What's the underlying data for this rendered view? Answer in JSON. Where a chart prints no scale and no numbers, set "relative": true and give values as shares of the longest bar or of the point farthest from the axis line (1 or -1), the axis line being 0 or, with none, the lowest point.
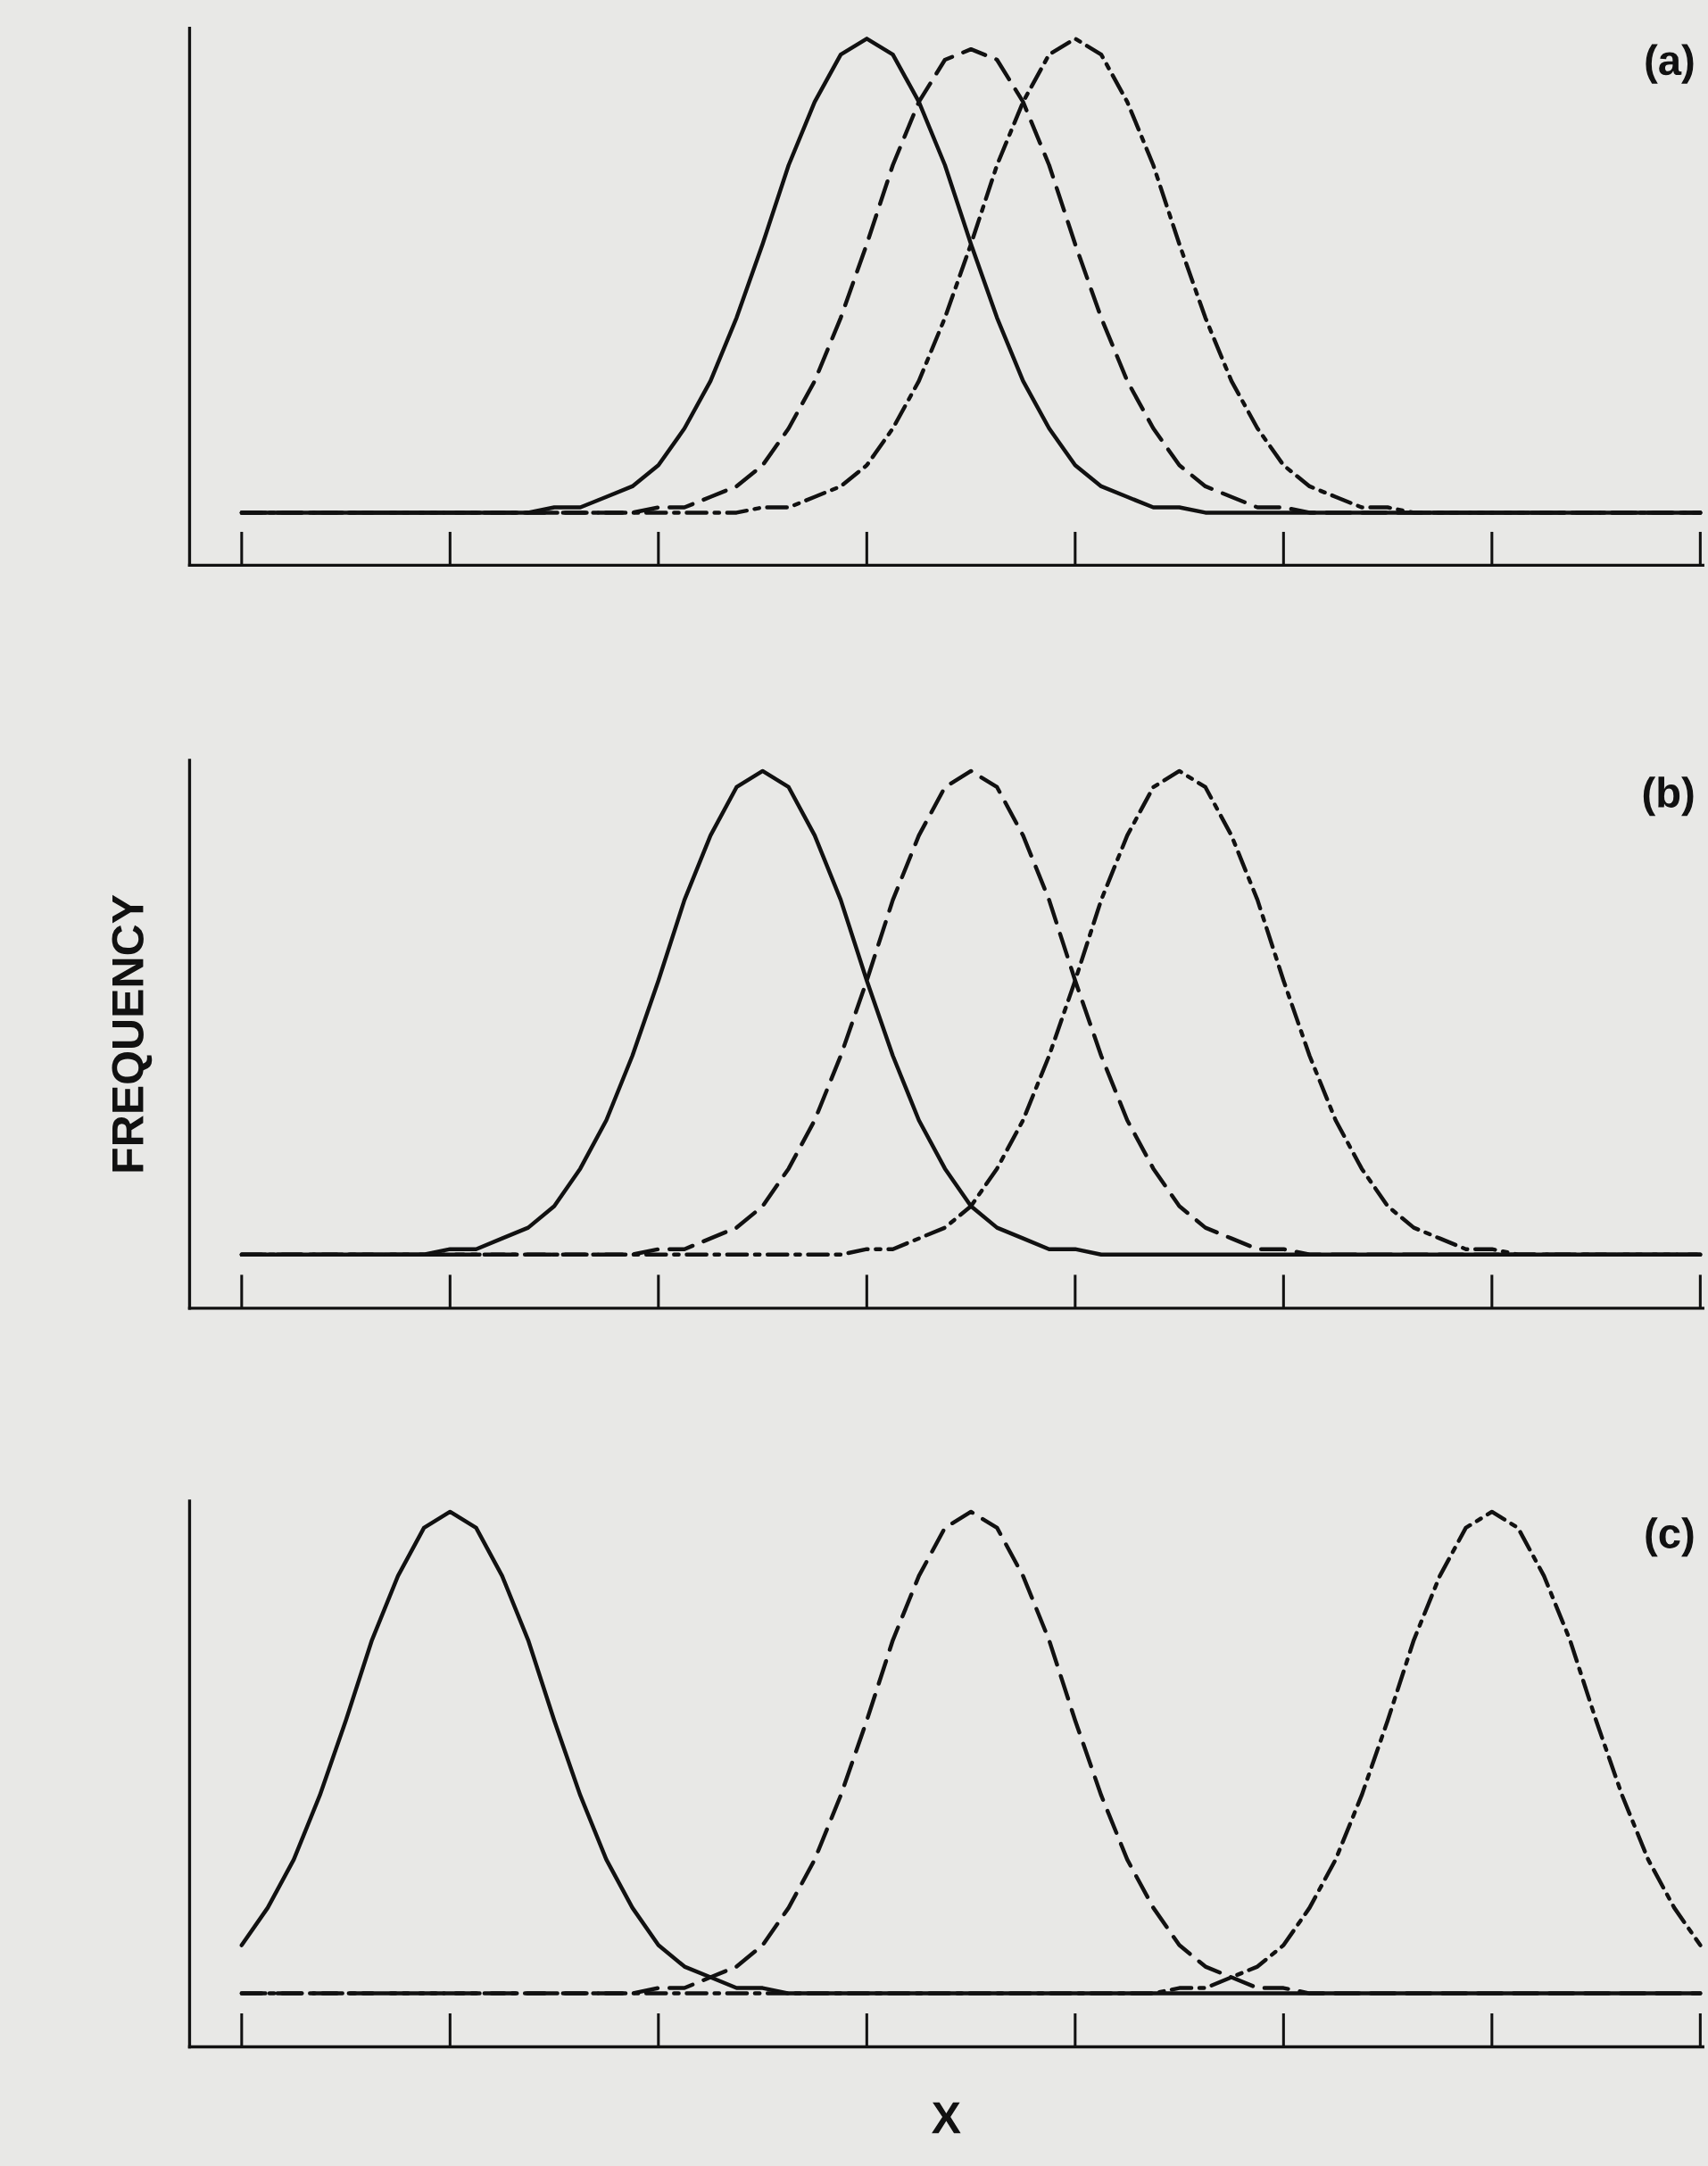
{
  "chart_data": [
    {
      "type": "line",
      "relative": true,
      "annotations": [
        "(a)"
      ],
      "categories": [
        null,
        null,
        null,
        null,
        null,
        null,
        null,
        null,
        null,
        null,
        null,
        null,
        null,
        null,
        null,
        null,
        null,
        null,
        null,
        null,
        null,
        null,
        null,
        null,
        null,
        null,
        null,
        null,
        null,
        null,
        null,
        null,
        null,
        null,
        null,
        null,
        null,
        null,
        null,
        null,
        null,
        null,
        null,
        null,
        null,
        null,
        null,
        null,
        null,
        null,
        null,
        null,
        null,
        null,
        null,
        null,
        null
      ],
      "series": [
        {
          "color": "#111111",
          "line_style": "solid",
          "values": [
            0.1,
            0.1,
            0.1,
            0.1,
            0.1,
            0.1,
            0.1,
            0.1,
            0.1,
            0.1,
            0.1,
            0.1,
            0.11,
            0.11,
            0.13,
            0.15,
            0.19,
            0.26,
            0.35,
            0.47,
            0.61,
            0.76,
            0.88,
            0.97,
            1,
            0.97,
            0.88,
            0.76,
            0.61,
            0.47,
            0.35,
            0.26,
            0.19,
            0.15,
            0.13,
            0.11,
            0.11,
            0.1,
            0.1,
            0.1,
            0.1,
            0.1,
            0.1,
            0.1,
            0.1,
            0.1,
            0.1,
            0.1,
            0.1,
            0.1,
            0.1,
            0.1,
            0.1,
            0.1,
            0.1,
            0.1,
            0.1
          ]
        },
        {
          "color": "#111111",
          "line_style": "dashed",
          "values": [
            0.1,
            0.1,
            0.1,
            0.1,
            0.1,
            0.1,
            0.1,
            0.1,
            0.1,
            0.1,
            0.1,
            0.1,
            0.1,
            0.1,
            0.1,
            0.1,
            0.11,
            0.11,
            0.13,
            0.15,
            0.19,
            0.26,
            0.35,
            0.47,
            0.61,
            0.76,
            0.88,
            0.96,
            0.98,
            0.96,
            0.88,
            0.76,
            0.61,
            0.47,
            0.35,
            0.26,
            0.19,
            0.15,
            0.13,
            0.11,
            0.11,
            0.1,
            0.1,
            0.1,
            0.1,
            0.1,
            0.1,
            0.1,
            0.1,
            0.1,
            0.1,
            0.1,
            0.1,
            0.1,
            0.1,
            0.1,
            0.1
          ]
        },
        {
          "color": "#111111",
          "line_style": "dashdot",
          "values": [
            0.1,
            0.1,
            0.1,
            0.1,
            0.1,
            0.1,
            0.1,
            0.1,
            0.1,
            0.1,
            0.1,
            0.1,
            0.1,
            0.1,
            0.1,
            0.1,
            0.1,
            0.1,
            0.1,
            0.1,
            0.11,
            0.11,
            0.13,
            0.15,
            0.19,
            0.26,
            0.35,
            0.47,
            0.61,
            0.76,
            0.88,
            0.97,
            1,
            0.97,
            0.88,
            0.76,
            0.61,
            0.47,
            0.35,
            0.26,
            0.19,
            0.15,
            0.13,
            0.11,
            0.11,
            0.1,
            0.1,
            0.1,
            0.1,
            0.1,
            0.1,
            0.1,
            0.1,
            0.1,
            0.1,
            0.1,
            0.1
          ]
        }
      ]
    },
    {
      "type": "line",
      "relative": true,
      "annotations": [
        "(b)"
      ],
      "ylabel": "FREQUENCY",
      "categories": [
        null,
        null,
        null,
        null,
        null,
        null,
        null,
        null,
        null,
        null,
        null,
        null,
        null,
        null,
        null,
        null,
        null,
        null,
        null,
        null,
        null,
        null,
        null,
        null,
        null,
        null,
        null,
        null,
        null,
        null,
        null,
        null,
        null,
        null,
        null,
        null,
        null,
        null,
        null,
        null,
        null,
        null,
        null,
        null,
        null,
        null,
        null,
        null,
        null,
        null,
        null,
        null,
        null,
        null,
        null,
        null,
        null
      ],
      "series": [
        {
          "color": "#111111",
          "line_style": "solid",
          "values": [
            0.1,
            0.1,
            0.1,
            0.1,
            0.1,
            0.1,
            0.1,
            0.1,
            0.11,
            0.11,
            0.13,
            0.15,
            0.19,
            0.26,
            0.35,
            0.47,
            0.61,
            0.76,
            0.88,
            0.97,
            1,
            0.97,
            0.88,
            0.76,
            0.61,
            0.47,
            0.35,
            0.26,
            0.19,
            0.15,
            0.13,
            0.11,
            0.11,
            0.1,
            0.1,
            0.1,
            0.1,
            0.1,
            0.1,
            0.1,
            0.1,
            0.1,
            0.1,
            0.1,
            0.1,
            0.1,
            0.1,
            0.1,
            0.1,
            0.1,
            0.1,
            0.1,
            0.1,
            0.1,
            0.1,
            0.1,
            0.1
          ]
        },
        {
          "color": "#111111",
          "line_style": "dashed",
          "values": [
            0.1,
            0.1,
            0.1,
            0.1,
            0.1,
            0.1,
            0.1,
            0.1,
            0.1,
            0.1,
            0.1,
            0.1,
            0.1,
            0.1,
            0.1,
            0.1,
            0.11,
            0.11,
            0.13,
            0.15,
            0.19,
            0.26,
            0.35,
            0.47,
            0.61,
            0.76,
            0.88,
            0.97,
            1,
            0.97,
            0.88,
            0.76,
            0.61,
            0.47,
            0.35,
            0.26,
            0.19,
            0.15,
            0.13,
            0.11,
            0.11,
            0.1,
            0.1,
            0.1,
            0.1,
            0.1,
            0.1,
            0.1,
            0.1,
            0.1,
            0.1,
            0.1,
            0.1,
            0.1,
            0.1,
            0.1,
            0.1
          ]
        },
        {
          "color": "#111111",
          "line_style": "dashdot",
          "values": [
            0.1,
            0.1,
            0.1,
            0.1,
            0.1,
            0.1,
            0.1,
            0.1,
            0.1,
            0.1,
            0.1,
            0.1,
            0.1,
            0.1,
            0.1,
            0.1,
            0.1,
            0.1,
            0.1,
            0.1,
            0.1,
            0.1,
            0.1,
            0.1,
            0.11,
            0.11,
            0.13,
            0.15,
            0.19,
            0.26,
            0.35,
            0.47,
            0.61,
            0.76,
            0.88,
            0.97,
            1,
            0.97,
            0.88,
            0.76,
            0.61,
            0.47,
            0.35,
            0.26,
            0.19,
            0.15,
            0.13,
            0.11,
            0.11,
            0.1,
            0.1,
            0.1,
            0.1,
            0.1,
            0.1,
            0.1,
            0.1
          ]
        }
      ]
    },
    {
      "type": "line",
      "relative": true,
      "annotations": [
        "(c)"
      ],
      "xlabel": "X",
      "categories": [
        null,
        null,
        null,
        null,
        null,
        null,
        null,
        null,
        null,
        null,
        null,
        null,
        null,
        null,
        null,
        null,
        null,
        null,
        null,
        null,
        null,
        null,
        null,
        null,
        null,
        null,
        null,
        null,
        null,
        null,
        null,
        null,
        null,
        null,
        null,
        null,
        null,
        null,
        null,
        null,
        null,
        null,
        null,
        null,
        null,
        null,
        null,
        null,
        null,
        null,
        null,
        null,
        null,
        null,
        null,
        null,
        null
      ],
      "series": [
        {
          "color": "#111111",
          "line_style": "solid",
          "values": [
            0.19,
            0.26,
            0.35,
            0.47,
            0.61,
            0.76,
            0.88,
            0.97,
            1,
            0.97,
            0.88,
            0.76,
            0.61,
            0.47,
            0.35,
            0.26,
            0.19,
            0.15,
            0.13,
            0.11,
            0.11,
            0.1,
            0.1,
            0.1,
            0.1,
            0.1,
            0.1,
            0.1,
            0.1,
            0.1,
            0.1,
            0.1,
            0.1,
            0.1,
            0.1,
            0.1,
            0.1,
            0.1,
            0.1,
            0.1,
            0.1,
            0.1,
            0.1,
            0.1,
            0.1,
            0.1,
            0.1,
            0.1,
            0.1,
            0.1,
            0.1,
            0.1,
            0.1,
            0.1,
            0.1,
            0.1,
            0.1
          ]
        },
        {
          "color": "#111111",
          "line_style": "dashed",
          "values": [
            0.1,
            0.1,
            0.1,
            0.1,
            0.1,
            0.1,
            0.1,
            0.1,
            0.1,
            0.1,
            0.1,
            0.1,
            0.1,
            0.1,
            0.1,
            0.1,
            0.11,
            0.11,
            0.13,
            0.15,
            0.19,
            0.26,
            0.35,
            0.47,
            0.61,
            0.76,
            0.88,
            0.97,
            1,
            0.97,
            0.88,
            0.76,
            0.61,
            0.47,
            0.35,
            0.26,
            0.19,
            0.15,
            0.13,
            0.11,
            0.11,
            0.1,
            0.1,
            0.1,
            0.1,
            0.1,
            0.1,
            0.1,
            0.1,
            0.1,
            0.1,
            0.1,
            0.1,
            0.1,
            0.1,
            0.1,
            0.1
          ]
        },
        {
          "color": "#111111",
          "line_style": "dashdot",
          "values": [
            0.1,
            0.1,
            0.1,
            0.1,
            0.1,
            0.1,
            0.1,
            0.1,
            0.1,
            0.1,
            0.1,
            0.1,
            0.1,
            0.1,
            0.1,
            0.1,
            0.1,
            0.1,
            0.1,
            0.1,
            0.1,
            0.1,
            0.1,
            0.1,
            0.1,
            0.1,
            0.1,
            0.1,
            0.1,
            0.1,
            0.1,
            0.1,
            0.1,
            0.1,
            0.1,
            0.1,
            0.11,
            0.11,
            0.13,
            0.15,
            0.19,
            0.26,
            0.35,
            0.47,
            0.61,
            0.76,
            0.88,
            0.97,
            1,
            0.97,
            0.88,
            0.76,
            0.61,
            0.47,
            0.35,
            0.26,
            0.19
          ]
        }
      ]
    }
  ]
}
